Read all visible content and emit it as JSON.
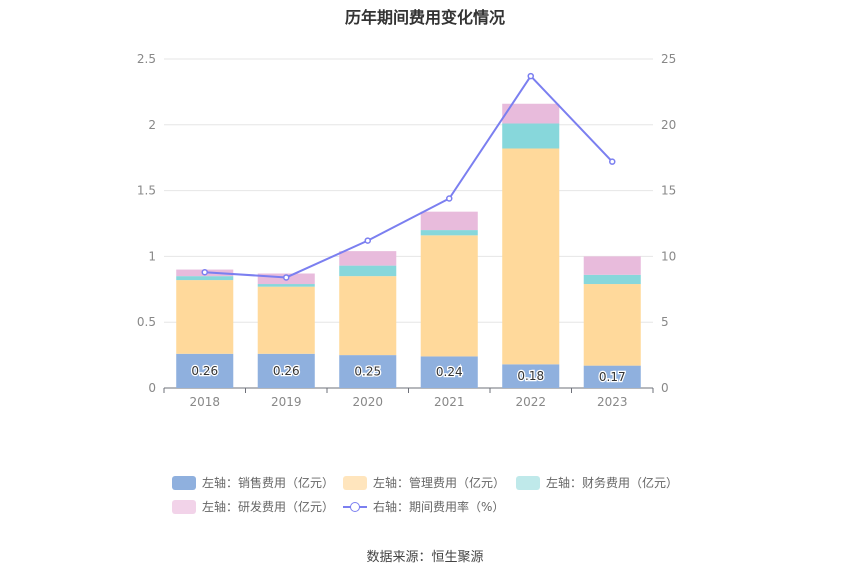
{
  "chart_data": {
    "type": "bar",
    "title": "历年期间费用变化情况",
    "categories": [
      "2018",
      "2019",
      "2020",
      "2021",
      "2022",
      "2023"
    ],
    "left_axis": {
      "min": 0,
      "max": 2.5,
      "ticks": [
        "0",
        "0.5",
        "1",
        "1.5",
        "2",
        "2.5"
      ]
    },
    "right_axis": {
      "min": 0,
      "max": 25,
      "ticks": [
        "0",
        "5",
        "10",
        "15",
        "20",
        "25"
      ]
    },
    "stacked_series": [
      {
        "name": "左轴：销售费用（亿元）",
        "color": "#8fb0de",
        "values": [
          0.26,
          0.26,
          0.25,
          0.24,
          0.18,
          0.17
        ],
        "labels": [
          "0.26",
          "0.26",
          "0.25",
          "0.24",
          "0.18",
          "0.17"
        ]
      },
      {
        "name": "左轴：管理费用（亿元）",
        "color": "#ffd99b",
        "values": [
          0.56,
          0.51,
          0.6,
          0.92,
          1.64,
          0.62
        ]
      },
      {
        "name": "左轴：财务费用（亿元）",
        "color": "#87d7db",
        "values": [
          0.03,
          0.02,
          0.08,
          0.04,
          0.19,
          0.07
        ]
      },
      {
        "name": "左轴：研发费用（亿元）",
        "color": "#e8bbdc",
        "values": [
          0.05,
          0.08,
          0.11,
          0.14,
          0.15,
          0.14
        ]
      }
    ],
    "line_series": {
      "name": "右轴：期间费用率（%）",
      "color": "#7b7ff0",
      "values": [
        8.8,
        8.4,
        11.2,
        14.4,
        23.7,
        17.2
      ]
    },
    "legend": [
      {
        "label": "左轴：销售费用（亿元）",
        "color": "#8fb0de",
        "kind": "box"
      },
      {
        "label": "左轴：管理费用（亿元）",
        "color": "#ffe5bd",
        "kind": "box"
      },
      {
        "label": "左轴：财务费用（亿元）",
        "color": "#bfe9ea",
        "kind": "box"
      },
      {
        "label": "左轴：研发费用（亿元）",
        "color": "#f2d3e9",
        "kind": "box"
      },
      {
        "label": "右轴：期间费用率（%）",
        "color": "#7b7ff0",
        "kind": "line"
      }
    ]
  },
  "source": "数据来源：恒生聚源"
}
